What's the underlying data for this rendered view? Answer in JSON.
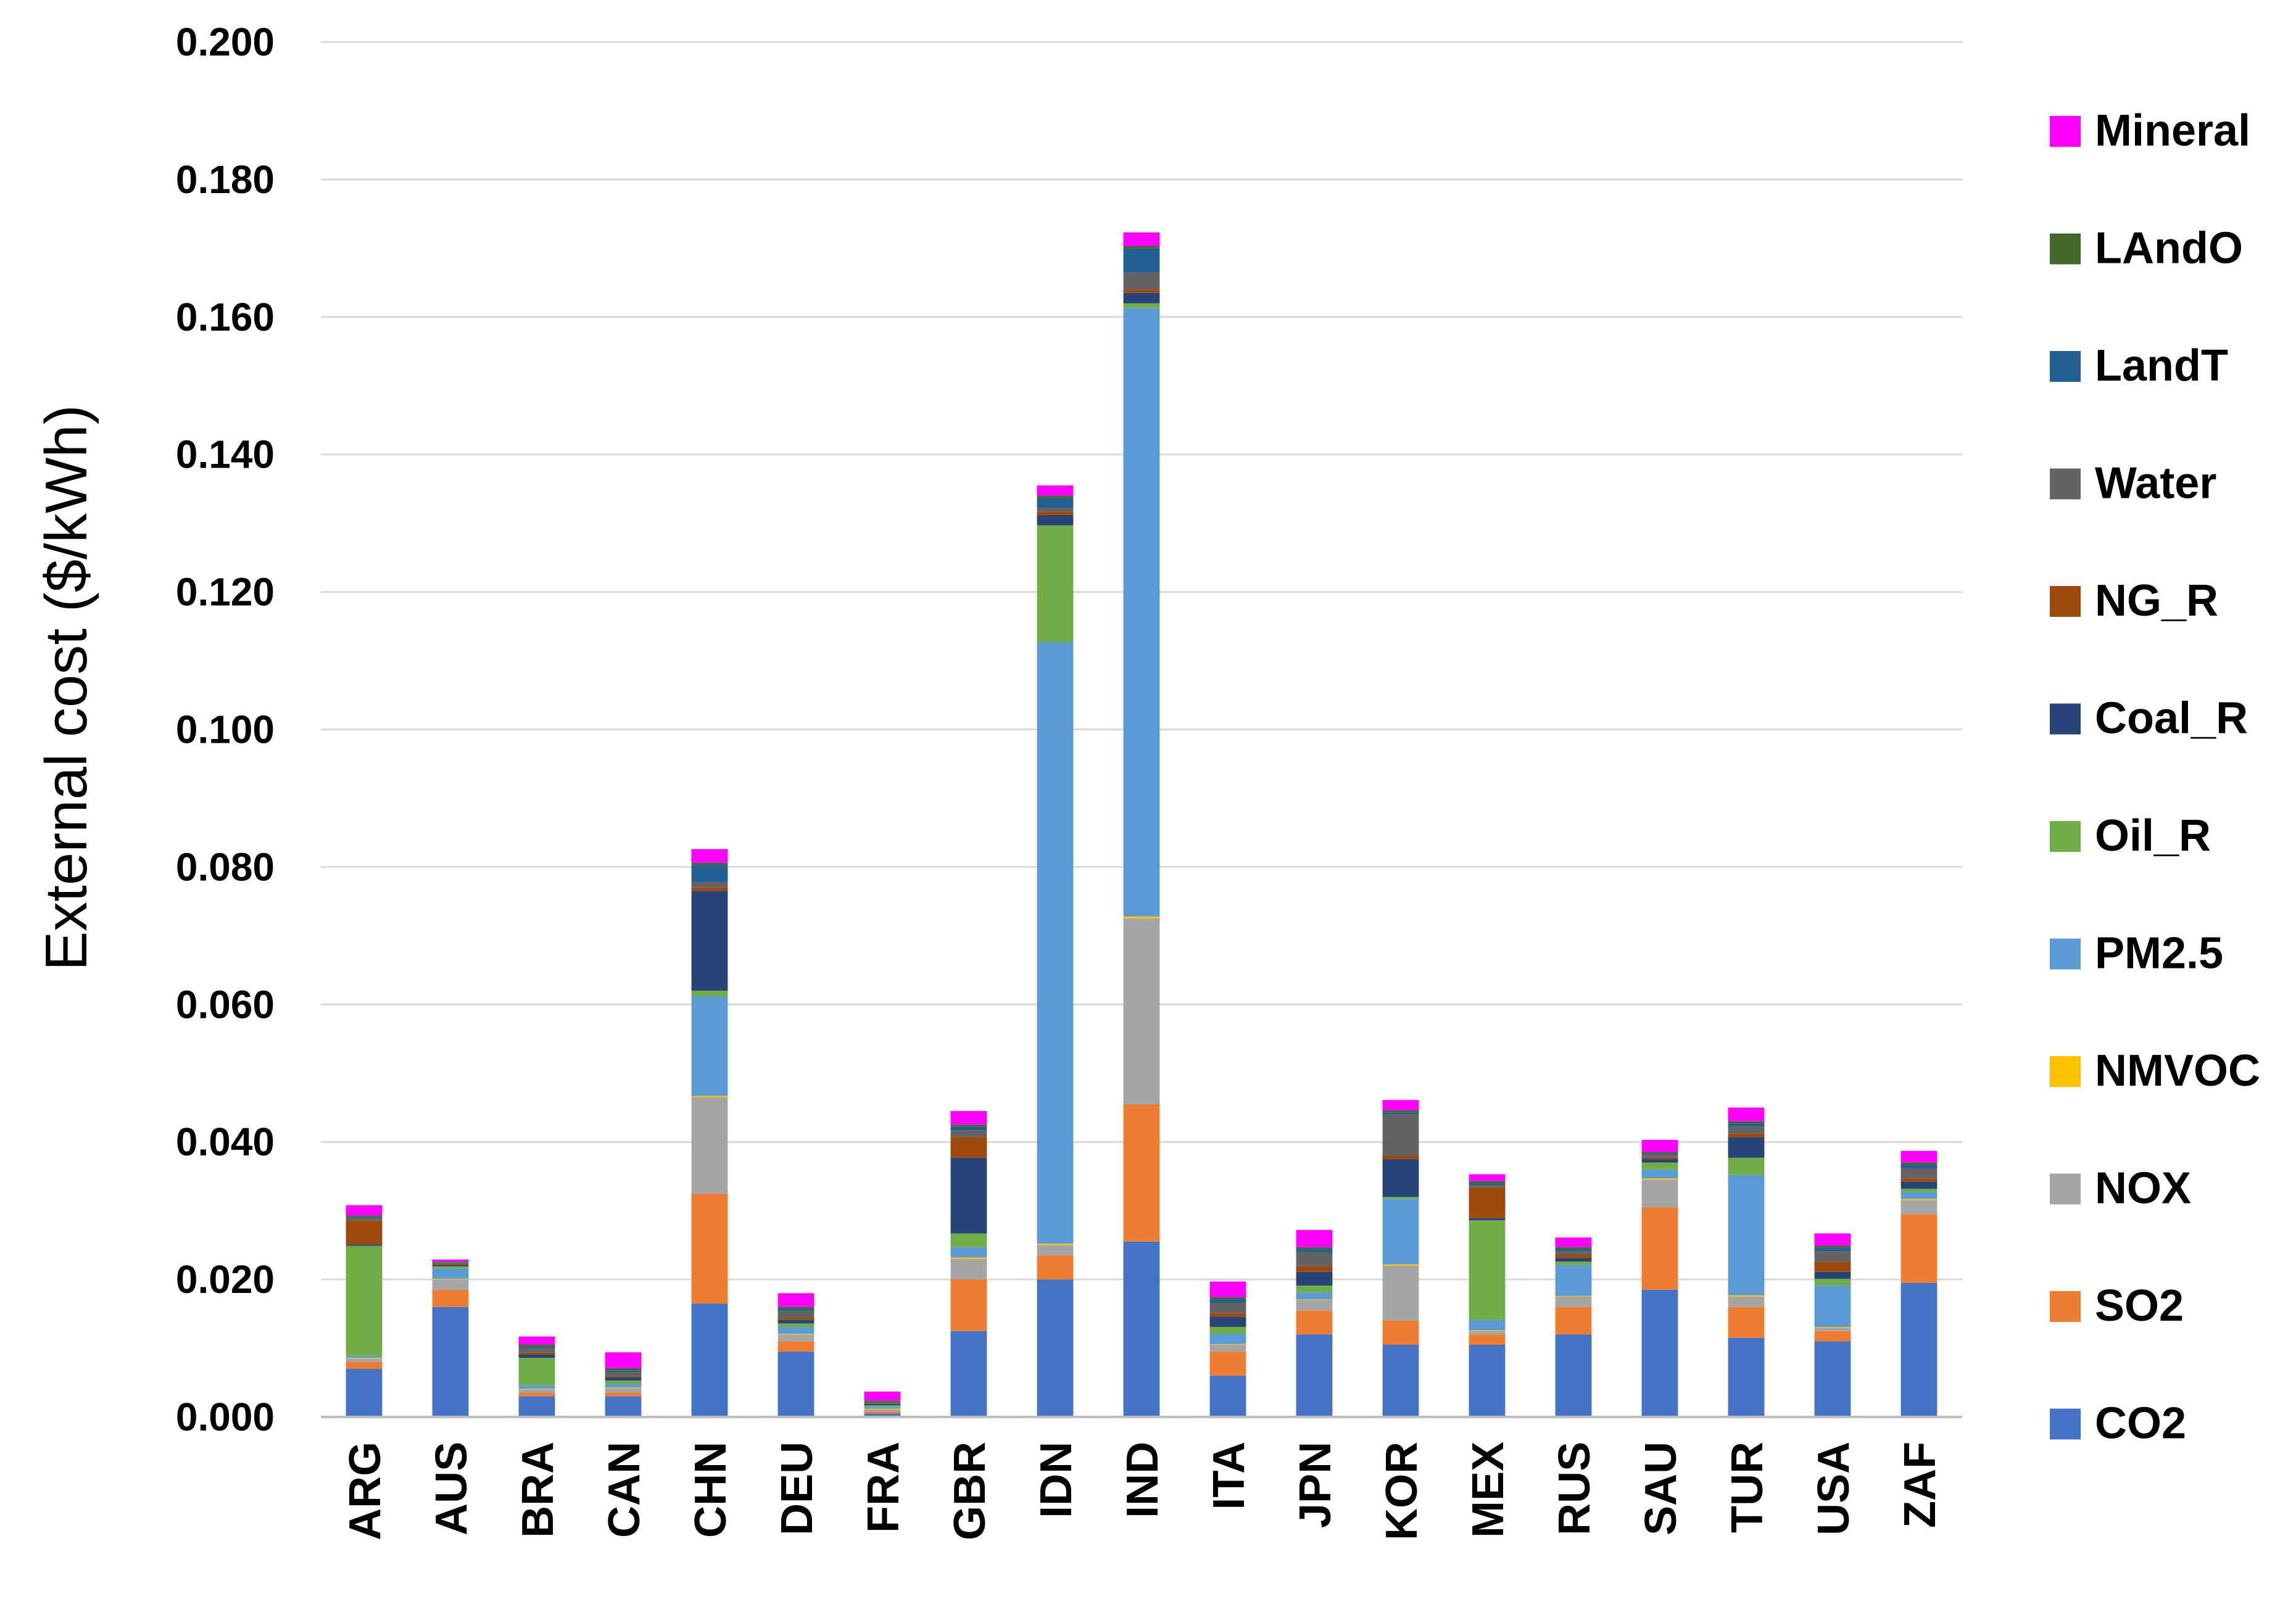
{
  "chart_data": {
    "type": "bar",
    "stacked": true,
    "title": "",
    "xlabel": "",
    "ylabel": "External cost ($/kWh)",
    "ylim": [
      0,
      0.2
    ],
    "yticks": [
      "0.000",
      "0.020",
      "0.040",
      "0.060",
      "0.080",
      "0.100",
      "0.120",
      "0.140",
      "0.160",
      "0.180",
      "0.200"
    ],
    "grid": true,
    "legend_position": "right",
    "categories": [
      "ARG",
      "AUS",
      "BRA",
      "CAN",
      "CHN",
      "DEU",
      "FRA",
      "GBR",
      "IDN",
      "IND",
      "ITA",
      "JPN",
      "KOR",
      "MEX",
      "RUS",
      "SAU",
      "TUR",
      "USA",
      "ZAF"
    ],
    "series": [
      {
        "name": "CO2",
        "color": "#4472C4",
        "values": [
          0.007,
          0.016,
          0.003,
          0.003,
          0.0165,
          0.0095,
          0.0005,
          0.0125,
          0.02,
          0.0255,
          0.006,
          0.012,
          0.0105,
          0.0105,
          0.012,
          0.0185,
          0.0115,
          0.011,
          0.0195
        ]
      },
      {
        "name": "SO2",
        "color": "#ED7D31",
        "values": [
          0.001,
          0.0025,
          0.0005,
          0.0005,
          0.016,
          0.0015,
          0.0003,
          0.0075,
          0.0035,
          0.02,
          0.0035,
          0.0035,
          0.0035,
          0.0015,
          0.004,
          0.012,
          0.0045,
          0.0015,
          0.01
        ]
      },
      {
        "name": "NOX",
        "color": "#A5A5A5",
        "values": [
          0.0005,
          0.0015,
          0.0005,
          0.0007,
          0.014,
          0.001,
          0.0003,
          0.003,
          0.0015,
          0.027,
          0.001,
          0.0015,
          0.008,
          0.0005,
          0.0015,
          0.004,
          0.0015,
          0.0005,
          0.002
        ]
      },
      {
        "name": "NMVOC",
        "color": "#FFC000",
        "values": [
          0.0001,
          0.0001,
          0.0001,
          0.0001,
          0.0002,
          0.0001,
          0.0001,
          0.0002,
          0.0002,
          0.0003,
          0.0001,
          0.0001,
          0.0002,
          0.0001,
          0.0001,
          0.0002,
          0.0002,
          0.0001,
          0.0002
        ]
      },
      {
        "name": "PM2.5",
        "color": "#5B9BD5",
        "values": [
          0.0003,
          0.0015,
          0.0005,
          0.0005,
          0.0145,
          0.001,
          0.0003,
          0.0015,
          0.0875,
          0.0885,
          0.0015,
          0.001,
          0.0095,
          0.0015,
          0.0045,
          0.0013,
          0.0175,
          0.006,
          0.001
        ]
      },
      {
        "name": "Oil_R",
        "color": "#70AD47",
        "values": [
          0.016,
          0.0003,
          0.004,
          0.0005,
          0.0008,
          0.0005,
          0.0002,
          0.002,
          0.017,
          0.0007,
          0.001,
          0.001,
          0.0003,
          0.0145,
          0.0005,
          0.001,
          0.0025,
          0.001,
          0.0005
        ]
      },
      {
        "name": "Coal_R",
        "color": "#264478",
        "values": [
          0.0002,
          0.0002,
          0.0005,
          0.0005,
          0.0145,
          0.0005,
          0.0002,
          0.011,
          0.0015,
          0.0015,
          0.0015,
          0.002,
          0.0055,
          0.0003,
          0.0005,
          0.0005,
          0.003,
          0.001,
          0.001
        ]
      },
      {
        "name": "NG_R",
        "color": "#9E480E",
        "values": [
          0.0035,
          0.0002,
          0.0003,
          0.0002,
          0.0005,
          0.0003,
          0.0001,
          0.003,
          0.0005,
          0.0005,
          0.0005,
          0.0008,
          0.0005,
          0.0045,
          0.0005,
          0.0003,
          0.0005,
          0.0015,
          0.0005
        ]
      },
      {
        "name": "Water",
        "color": "#636363",
        "values": [
          0.0003,
          0.0001,
          0.0005,
          0.0005,
          0.0008,
          0.001,
          0.0002,
          0.001,
          0.0005,
          0.0025,
          0.0015,
          0.002,
          0.006,
          0.0003,
          0.0005,
          0.0003,
          0.001,
          0.0015,
          0.0015
        ]
      },
      {
        "name": "LandT",
        "color": "#255E91",
        "values": [
          0.0002,
          0.0001,
          0.0003,
          0.0003,
          0.0025,
          0.0003,
          0.0001,
          0.0005,
          0.0015,
          0.0035,
          0.0005,
          0.0005,
          0.0003,
          0.0003,
          0.0003,
          0.0002,
          0.0005,
          0.0005,
          0.0005
        ]
      },
      {
        "name": "LAndO",
        "color": "#43682B",
        "values": [
          0.0002,
          0.0001,
          0.0003,
          0.0003,
          0.0003,
          0.0003,
          0.0001,
          0.0003,
          0.0003,
          0.0003,
          0.0003,
          0.0003,
          0.0003,
          0.0003,
          0.0003,
          0.0002,
          0.0003,
          0.0003,
          0.0003
        ]
      },
      {
        "name": "Mineral",
        "color": "#FF00FF",
        "values": [
          0.0015,
          0.0003,
          0.0012,
          0.0023,
          0.002,
          0.002,
          0.0013,
          0.002,
          0.0015,
          0.002,
          0.0023,
          0.0025,
          0.0015,
          0.001,
          0.0014,
          0.0018,
          0.002,
          0.0018,
          0.0017
        ]
      }
    ]
  }
}
